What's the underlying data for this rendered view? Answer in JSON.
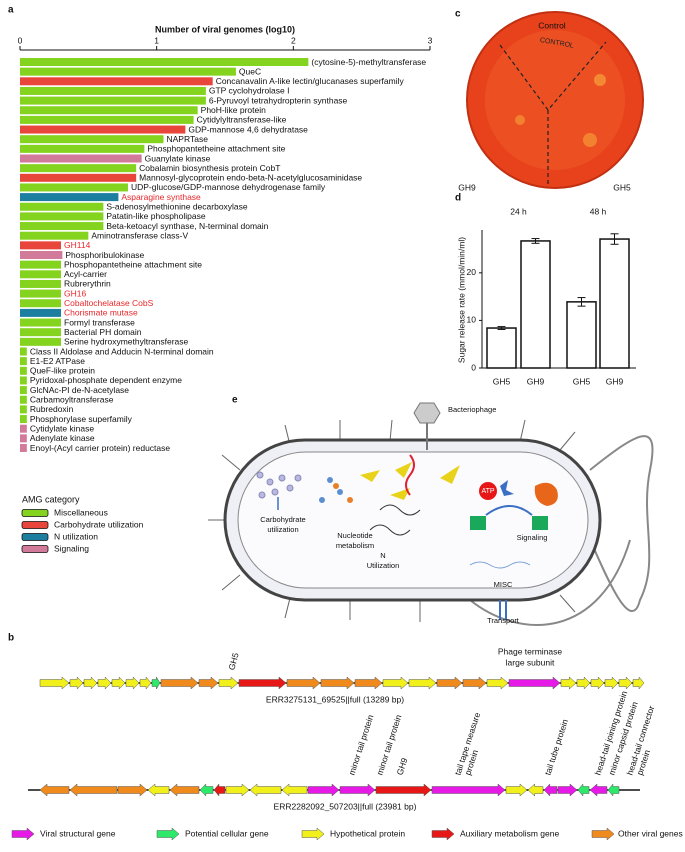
{
  "panels": [
    "a",
    "b",
    "c",
    "d",
    "e"
  ],
  "chart_data": [
    {
      "type": "bar",
      "orientation": "horizontal",
      "title": "Number of viral genomes (log10)",
      "categories": [
        "(cytosine-5)-methyltransferase",
        "QueC",
        "Concanavalin A-like lectin/glucanases superfamily",
        "GTP cyclohydrolase I",
        "6-Pyruvoyl tetrahydropterin synthase",
        "PhoH-like protein",
        "Cytidylyltransferase-like",
        "GDP-mannose 4,6 dehydratase",
        "NAPRTase",
        "Phosphopantetheine attachment site",
        "Guanylate kinase",
        "Cobalamin biosynthesis protein CobT",
        "Mannosyl-glycoprotein endo-beta-N-acetylglucosaminidase",
        "UDP-glucose/GDP-mannose dehydrogenase family",
        "Asparagine synthase",
        "S-adenosylmethionine decarboxylase",
        "Patatin-like phospholipase",
        "Beta-ketoacyl synthase, N-terminal domain",
        "Aminotransferase class-V",
        "GH114",
        "Phosphoribulokinase",
        "Phosphopantetheine attachment site",
        "Acyl-carrier",
        "Rubrerythrin",
        "GH16",
        "Cobaltochelatase CobS",
        "Chorismate mutase",
        "Formyl transferase",
        "Bacterial PH domain",
        "Serine hydroxymethyltransferase",
        "Class II Aldolase and Adducin N-terminal domain",
        "E1-E2 ATPase",
        "QueF-like protein",
        "Pyridoxal-phosphate dependent enzyme",
        "GlcNAc-PI de-N-acetylase",
        "Carbamoyltransferase",
        "Rubredoxin",
        "Phosphorylase superfamily",
        "Cytidylate kinase",
        "Adenylate kinase",
        "Enoyl-(Acyl carrier protein) reductase"
      ],
      "values": [
        2.11,
        1.58,
        1.41,
        1.36,
        1.36,
        1.3,
        1.27,
        1.21,
        1.05,
        0.91,
        0.89,
        0.85,
        0.85,
        0.79,
        0.72,
        0.61,
        0.61,
        0.61,
        0.5,
        0.3,
        0.31,
        0.3,
        0.3,
        0.3,
        0.3,
        0.3,
        0.3,
        0.3,
        0.3,
        0.3,
        0.05,
        0.05,
        0.05,
        0.05,
        0.05,
        0.05,
        0.05,
        0.05,
        0.05,
        0.05,
        0.05
      ],
      "colors": [
        "#84d31f",
        "#84d31f",
        "#e8463a",
        "#84d31f",
        "#84d31f",
        "#84d31f",
        "#84d31f",
        "#e8463a",
        "#84d31f",
        "#84d31f",
        "#d27a9a",
        "#84d31f",
        "#e8463a",
        "#84d31f",
        "#1d7fa0",
        "#84d31f",
        "#84d31f",
        "#84d31f",
        "#84d31f",
        "#e8463a",
        "#d27a9a",
        "#84d31f",
        "#84d31f",
        "#84d31f",
        "#84d31f",
        "#84d31f",
        "#1d7fa0",
        "#84d31f",
        "#84d31f",
        "#84d31f",
        "#84d31f",
        "#84d31f",
        "#84d31f",
        "#84d31f",
        "#84d31f",
        "#84d31f",
        "#84d31f",
        "#84d31f",
        "#d27a9a",
        "#d27a9a",
        "#d27a9a"
      ],
      "label_colors": [
        "#111",
        "#111",
        "#111",
        "#111",
        "#111",
        "#111",
        "#111",
        "#111",
        "#111",
        "#111",
        "#111",
        "#111",
        "#111",
        "#111",
        "#e8262a",
        "#111",
        "#111",
        "#111",
        "#111",
        "#e8262a",
        "#111",
        "#111",
        "#111",
        "#111",
        "#e8262a",
        "#e8262a",
        "#e8262a",
        "#111",
        "#111",
        "#111",
        "#111",
        "#111",
        "#111",
        "#111",
        "#111",
        "#111",
        "#111",
        "#111",
        "#111",
        "#111",
        "#111"
      ],
      "xlim": [
        0,
        3
      ],
      "xticks": [
        0,
        1,
        2,
        3
      ],
      "legend_title": "AMG category",
      "legend": [
        {
          "name": "Miscellaneous",
          "color": "#84d31f"
        },
        {
          "name": "Carbohydrate utilization",
          "color": "#e8463a"
        },
        {
          "name": "N utilization",
          "color": "#1d7fa0"
        },
        {
          "name": "Signaling",
          "color": "#d27a9a"
        }
      ]
    },
    {
      "type": "bar",
      "ylabel": "Sugar release rate (mmol/min/ml)",
      "groups": [
        "24 h",
        "48 h"
      ],
      "categories": [
        "GH5",
        "GH9",
        "GH5",
        "GH9"
      ],
      "values": [
        8.4,
        26.7,
        13.9,
        27.1
      ],
      "errors": [
        0.3,
        0.5,
        0.9,
        1.1
      ],
      "color": "#ffffff",
      "ylim": [
        0,
        29
      ],
      "yticks": [
        0,
        10,
        20
      ]
    }
  ],
  "plate": {
    "labels": [
      "Control",
      "GH9",
      "GH5"
    ]
  },
  "diagram": {
    "labels": [
      [
        "Bacteriophage"
      ],
      [
        "Carbohydrate",
        "utilization"
      ],
      [
        "Nucleotide",
        "metabolism"
      ],
      [
        "N",
        "Utilization"
      ],
      [
        "ATP"
      ],
      [
        "Signaling"
      ],
      [
        "MISC"
      ],
      [
        "Transport"
      ]
    ]
  },
  "gene_maps": [
    {
      "gene_label": "GH5",
      "feature_label": [
        "Phage terminase",
        "large subunit"
      ],
      "caption": "ERR3275131_69525||full (13289 bp)"
    },
    {
      "labels": [
        [
          "minor tail protein"
        ],
        [
          "minor tail protein"
        ],
        [
          "GH9"
        ],
        [
          "tail tape measure",
          "protein"
        ],
        [
          "tail tube protein"
        ],
        [
          "head-tail joining protein"
        ],
        [
          "minor capsid protein"
        ],
        [
          "head-tail connector",
          "protein"
        ]
      ],
      "caption": "ERR2282092_507203||full (23981 bp)"
    }
  ],
  "gene_legend": [
    {
      "name": "Viral structural gene",
      "color": "#e619e6"
    },
    {
      "name": "Potential cellular gene",
      "color": "#2ee86a"
    },
    {
      "name": "Hypothetical protein",
      "color": "#f2f01b"
    },
    {
      "name": "Auxiliary metabolism gene",
      "color": "#e81717"
    },
    {
      "name": "Other viral genes",
      "color": "#f08a1c"
    }
  ]
}
